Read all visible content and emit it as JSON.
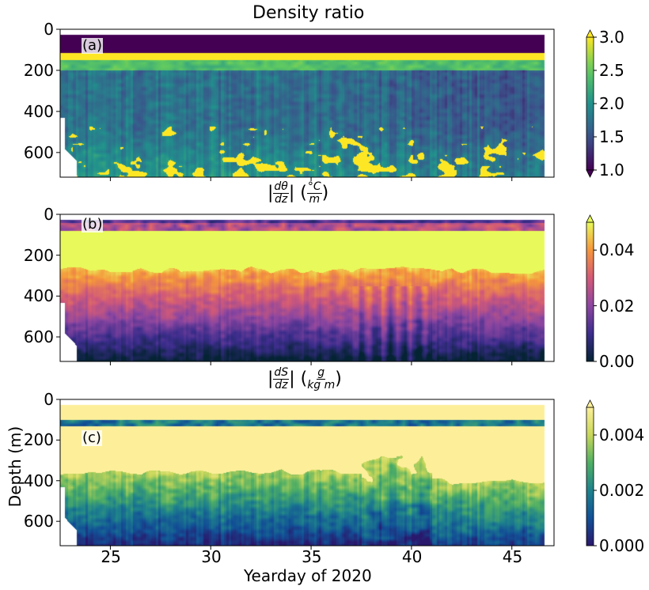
{
  "figure_title": "Density ratio",
  "xlabel": "Yearday of 2020",
  "ylabel": "Depth (m)",
  "chart_data": [
    {
      "type": "heatmap",
      "panel_label": "(a)",
      "title": "",
      "colorbar_title": "Density ratio",
      "colormap": "viridis",
      "clim": [
        1.0,
        3.0
      ],
      "colorbar_extend": "both",
      "colorbar_ticks": [
        "1.0",
        "1.5",
        "2.0",
        "2.5",
        "3.0"
      ],
      "xlim": [
        22.5,
        47.1
      ],
      "ylim": [
        720,
        0
      ],
      "xticks": [
        "25",
        "30",
        "35",
        "40",
        "45"
      ],
      "yticks": [
        "0",
        "200",
        "400",
        "600"
      ],
      "contours": true
    },
    {
      "type": "heatmap",
      "panel_label": "(b)",
      "title": {
        "prefix": "|",
        "num": "dθ",
        "den": "dz",
        "mid": "| (",
        "unit_num": "°C",
        "unit_den": "m",
        "suffix": ")"
      },
      "colormap": "thermal",
      "clim": [
        0.0,
        0.05
      ],
      "colorbar_extend": "max",
      "colorbar_ticks": [
        "0.00",
        "0.02",
        "0.04"
      ],
      "xlim": [
        22.5,
        47.1
      ],
      "ylim": [
        720,
        0
      ],
      "xticks": [
        "25",
        "30",
        "35",
        "40",
        "45"
      ],
      "yticks": [
        "0",
        "200",
        "400",
        "600"
      ],
      "contours": true
    },
    {
      "type": "heatmap",
      "panel_label": "(c)",
      "title": {
        "prefix": "|",
        "num": "dS",
        "den": "dz",
        "mid": "| (",
        "unit_num": "g",
        "unit_den": "kg m",
        "suffix": ")"
      },
      "colormap": "haline",
      "clim": [
        0.0,
        0.005
      ],
      "colorbar_extend": "max",
      "colorbar_ticks": [
        "0.000",
        "0.002",
        "0.004"
      ],
      "xlim": [
        22.5,
        47.1
      ],
      "ylim": [
        720,
        0
      ],
      "xticks": [
        "25",
        "30",
        "35",
        "40",
        "45"
      ],
      "yticks": [
        "0",
        "200",
        "400",
        "600"
      ],
      "contours": true
    }
  ]
}
